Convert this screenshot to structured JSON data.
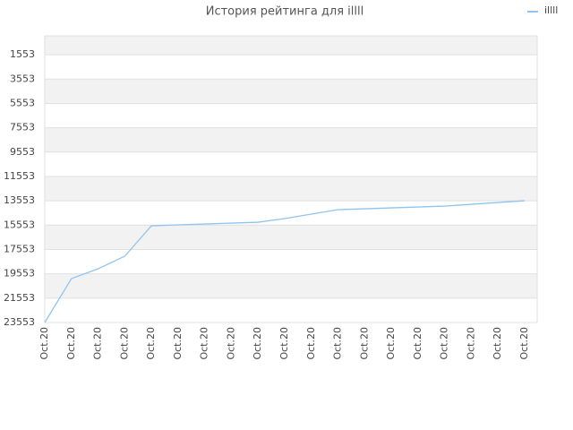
{
  "chart_data": {
    "type": "line",
    "title": "История рейтинга для illll",
    "categories": [
      "Oct.20",
      "Oct.20",
      "Oct.20",
      "Oct.20",
      "Oct.20",
      "Oct.20",
      "Oct.20",
      "Oct.20",
      "Oct.20",
      "Oct.20",
      "Oct.20",
      "Oct.20",
      "Oct.20",
      "Oct.20",
      "Oct.20",
      "Oct.20",
      "Oct.20",
      "Oct.20",
      "Oct.20"
    ],
    "series": [
      {
        "name": "illll",
        "color": "#90c4ee",
        "values": [
          23553,
          19948,
          19139,
          18108,
          15607,
          15533,
          15460,
          15386,
          15313,
          15018,
          14650,
          14282,
          14209,
          14135,
          14062,
          13988,
          13841,
          13694,
          13547
        ]
      }
    ],
    "ylim": [
      23553,
      0
    ],
    "yticks": [
      1553,
      3553,
      5553,
      7553,
      9553,
      11553,
      13553,
      15553,
      17553,
      19553,
      21553,
      23553
    ],
    "grid": true,
    "legend": "top-right"
  }
}
